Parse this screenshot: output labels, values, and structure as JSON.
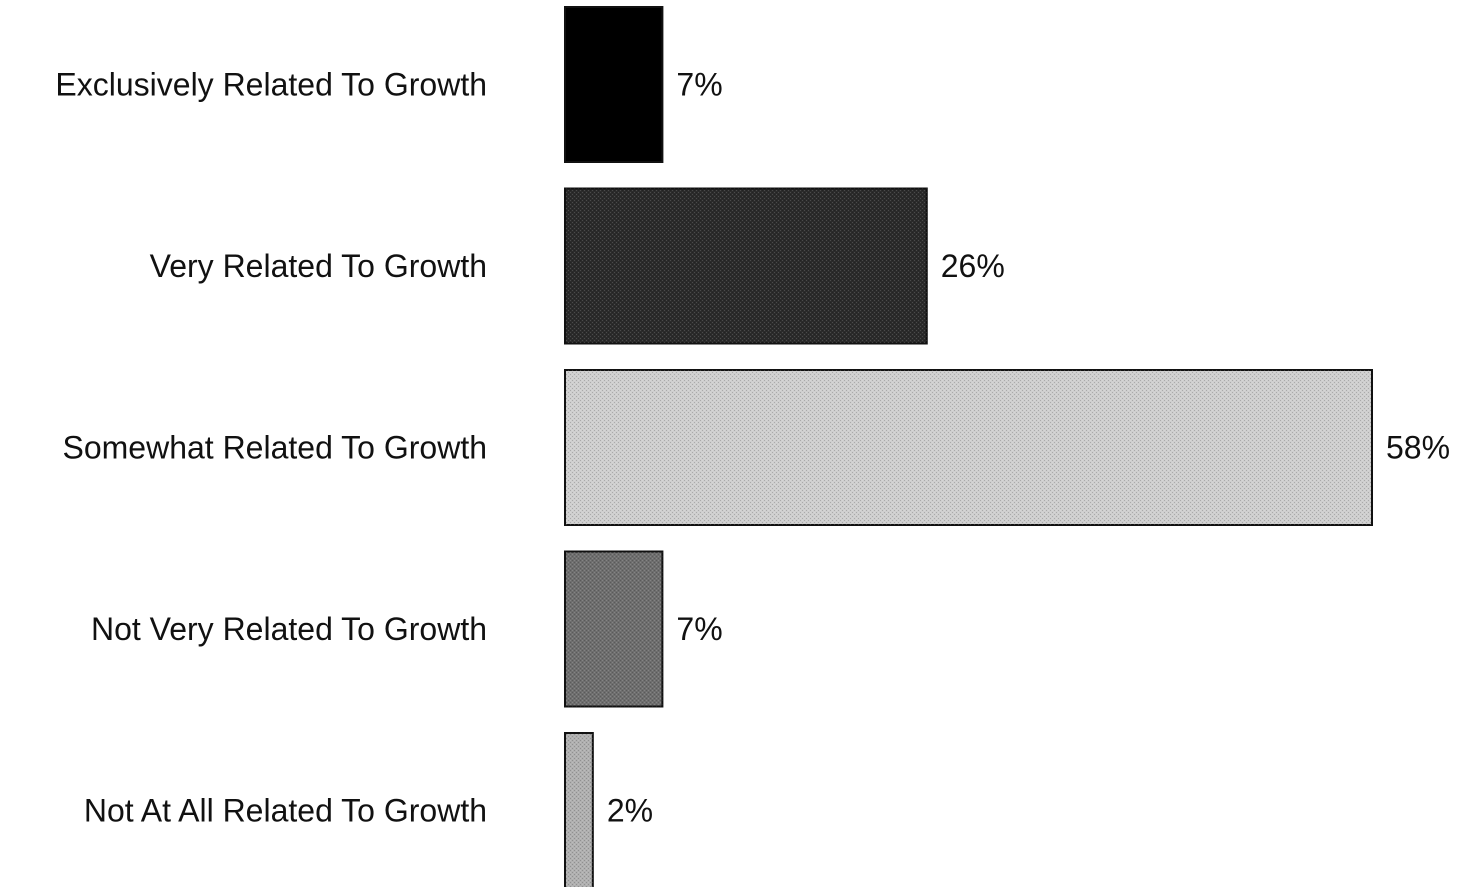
{
  "chart_data": {
    "type": "bar",
    "orientation": "horizontal",
    "categories": [
      "Exclusively Related To Growth",
      "Very Related To Growth",
      "Somewhat Related To Growth",
      "Not Very Related To Growth",
      "Not At All Related To Growth"
    ],
    "values": [
      7,
      26,
      58,
      7,
      2
    ],
    "value_labels": [
      "7%",
      "26%",
      "58%",
      "7%",
      "2%"
    ],
    "title": "",
    "xlabel": "",
    "ylabel": "",
    "xlim": [
      0,
      58
    ],
    "grid": false,
    "legend": "none",
    "colors": [
      "#000000",
      "#2b2b2b",
      "#cfcfcf",
      "#6e6e6e",
      "#b0b0b0"
    ]
  }
}
